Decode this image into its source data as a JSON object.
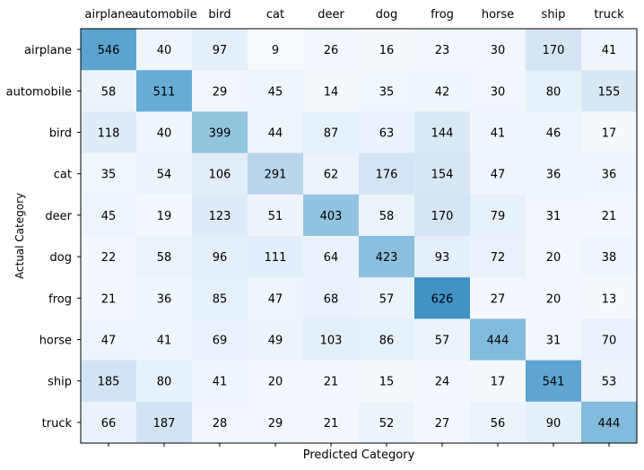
{
  "chart_data": {
    "type": "heatmap",
    "title": "",
    "xlabel": "Predicted Category",
    "ylabel": "Actual Category",
    "x_categories": [
      "airplane",
      "automobile",
      "bird",
      "cat",
      "deer",
      "dog",
      "frog",
      "horse",
      "ship",
      "truck"
    ],
    "y_categories": [
      "airplane",
      "automobile",
      "bird",
      "cat",
      "deer",
      "dog",
      "frog",
      "horse",
      "ship",
      "truck"
    ],
    "x_tick_position": "top",
    "values": [
      [
        546,
        40,
        97,
        9,
        26,
        16,
        23,
        30,
        170,
        41
      ],
      [
        58,
        511,
        29,
        45,
        14,
        35,
        42,
        30,
        80,
        155
      ],
      [
        118,
        40,
        399,
        44,
        87,
        63,
        144,
        41,
        46,
        17
      ],
      [
        35,
        54,
        106,
        291,
        62,
        176,
        154,
        47,
        36,
        36
      ],
      [
        45,
        19,
        123,
        51,
        403,
        58,
        170,
        79,
        31,
        21
      ],
      [
        22,
        58,
        96,
        111,
        64,
        423,
        93,
        72,
        20,
        38
      ],
      [
        21,
        36,
        85,
        47,
        68,
        57,
        626,
        27,
        20,
        13
      ],
      [
        47,
        41,
        69,
        49,
        103,
        86,
        57,
        444,
        31,
        70
      ],
      [
        185,
        80,
        41,
        20,
        21,
        15,
        24,
        17,
        541,
        53
      ],
      [
        66,
        187,
        28,
        29,
        21,
        52,
        27,
        56,
        90,
        444
      ]
    ],
    "colormap": "Blues",
    "color_range": [
      0,
      1000
    ],
    "grid": false,
    "legend": "none"
  }
}
